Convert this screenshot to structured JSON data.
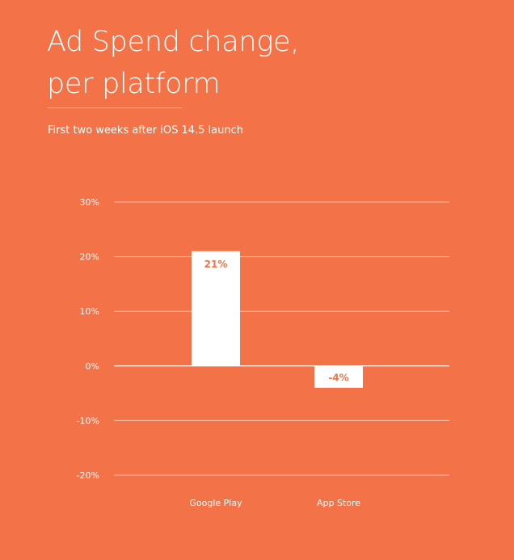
{
  "header": {
    "title_line1": "Ad Spend change,",
    "title_line2": "per platform",
    "subtitle": "First two weeks after iOS 14.5 launch"
  },
  "colors": {
    "background": "#F47248",
    "bar": "#FFFFFF",
    "data_label": "#F47248",
    "gridline": "#FBC3AE",
    "text": "#FFFFFF"
  },
  "chart_data": {
    "type": "bar",
    "categories": [
      "Google Play",
      "App Store"
    ],
    "values": [
      21,
      -4
    ],
    "data_labels": [
      "21%",
      "-4%"
    ],
    "ylim": [
      -20,
      30
    ],
    "yticks": [
      30,
      20,
      10,
      0,
      -10,
      -20
    ],
    "ytick_labels": [
      "30%",
      "20%",
      "10%",
      "0%",
      "-10%",
      "-20%"
    ],
    "grid": true,
    "legend": "none"
  }
}
